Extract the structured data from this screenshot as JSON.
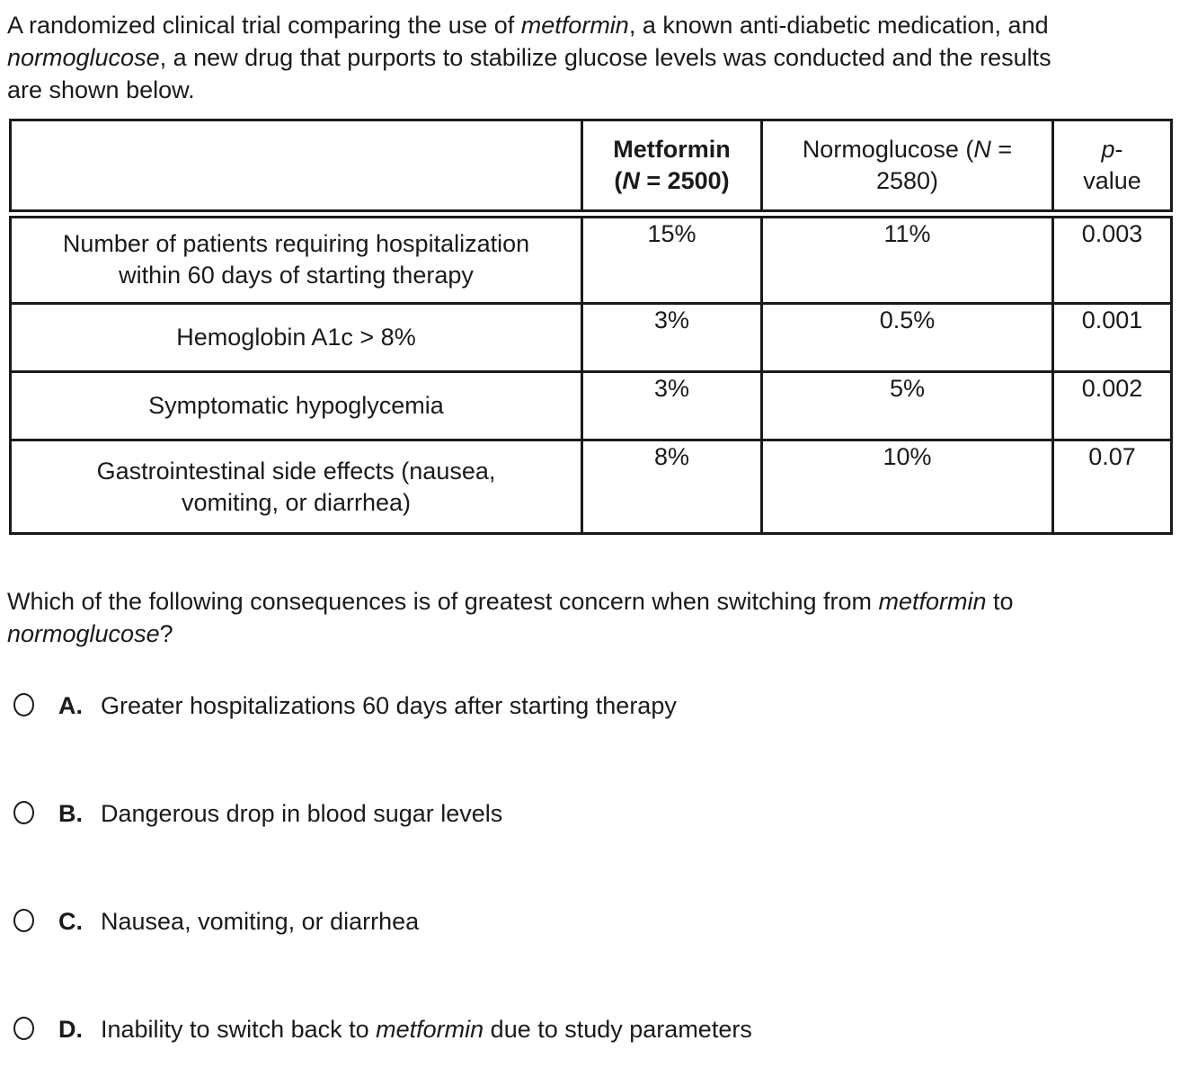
{
  "colors": {
    "text": "#1a1a1a",
    "border": "#1a1a1a",
    "page_background": "#ffffff"
  },
  "intro": {
    "segments": [
      {
        "t": "A randomized clinical trial comparing the use of "
      },
      {
        "t": "metformin",
        "i": true
      },
      {
        "t": ", a known anti-diabetic medication, and"
      },
      {
        "br": true
      },
      {
        "t": "normoglucose",
        "i": true
      },
      {
        "t": ", a new drug that purports to stabilize glucose levels was conducted and the results"
      },
      {
        "br": true
      },
      {
        "t": "are shown below."
      }
    ]
  },
  "table": {
    "headers": [
      {
        "segments": []
      },
      {
        "segments": [
          {
            "t": "Metformin",
            "b": true
          },
          {
            "br": true
          },
          {
            "t": "(",
            "b": true
          },
          {
            "t": "N",
            "b": true,
            "i": true
          },
          {
            "t": " = 2500)",
            "b": true
          }
        ]
      },
      {
        "segments": [
          {
            "t": "Normoglucose ("
          },
          {
            "t": "N",
            "i": true
          },
          {
            "t": " ="
          },
          {
            "br": true
          },
          {
            "t": "2580)"
          }
        ]
      },
      {
        "segments": [
          {
            "t": "p",
            "i": true
          },
          {
            "t": "-"
          },
          {
            "br": true
          },
          {
            "t": "value"
          }
        ]
      }
    ],
    "rows": [
      {
        "label_segments": [
          {
            "t": "Number of patients requiring hospitalization"
          },
          {
            "br": true
          },
          {
            "t": "within 60 days of starting therapy"
          }
        ],
        "values": [
          "15%",
          "11%",
          "0.003"
        ]
      },
      {
        "label_segments": [
          {
            "t": "Hemoglobin A1c > 8%"
          }
        ],
        "values": [
          "3%",
          "0.5%",
          "0.001"
        ]
      },
      {
        "label_segments": [
          {
            "t": "Symptomatic hypoglycemia"
          }
        ],
        "values": [
          "3%",
          "5%",
          "0.002"
        ]
      },
      {
        "label_segments": [
          {
            "t": "Gastrointestinal side effects (nausea,"
          },
          {
            "br": true
          },
          {
            "t": "vomiting, or diarrhea)"
          }
        ],
        "values": [
          "8%",
          "10%",
          "0.07"
        ]
      }
    ]
  },
  "question": {
    "segments": [
      {
        "t": "Which of the following consequences is of greatest concern when switching from "
      },
      {
        "t": "metformin",
        "i": true
      },
      {
        "t": " to"
      },
      {
        "br": true
      },
      {
        "t": "normoglucose",
        "i": true
      },
      {
        "t": "?"
      }
    ]
  },
  "options": [
    {
      "letter": "A.",
      "selected": false,
      "segments": [
        {
          "t": "Greater hospitalizations 60 days after starting therapy"
        }
      ]
    },
    {
      "letter": "B.",
      "selected": false,
      "segments": [
        {
          "t": "Dangerous drop in blood sugar levels"
        }
      ]
    },
    {
      "letter": "C.",
      "selected": false,
      "segments": [
        {
          "t": "Nausea, vomiting, or diarrhea"
        }
      ]
    },
    {
      "letter": "D.",
      "selected": false,
      "segments": [
        {
          "t": "Inability to switch back to "
        },
        {
          "t": "metformin",
          "i": true
        },
        {
          "t": " due to study parameters"
        }
      ]
    }
  ]
}
